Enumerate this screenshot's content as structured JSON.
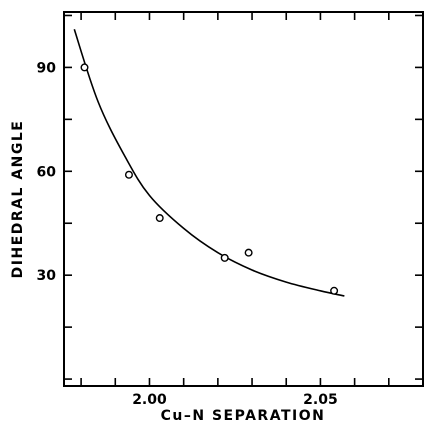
{
  "chart_data": {
    "type": "scatter",
    "title": "",
    "xlabel": "Cu–N  SEPARATION",
    "ylabel": "DIHEDRAL ANGLE",
    "xlim": [
      1.975,
      2.08
    ],
    "ylim": [
      -2,
      106
    ],
    "x_ticks": [
      1.98,
      1.99,
      2.0,
      2.01,
      2.02,
      2.03,
      2.04,
      2.05,
      2.06,
      2.07
    ],
    "x_tick_labels": [
      {
        "value": 2.0,
        "label": "2.00"
      },
      {
        "value": 2.05,
        "label": "2.05"
      }
    ],
    "y_ticks": [
      0,
      15,
      30,
      45,
      60,
      75,
      90,
      105
    ],
    "y_tick_labels": [
      {
        "value": 30,
        "label": "30"
      },
      {
        "value": 60,
        "label": "60"
      },
      {
        "value": 90,
        "label": "90"
      }
    ],
    "points": [
      {
        "x": 1.981,
        "y": 90
      },
      {
        "x": 1.994,
        "y": 59
      },
      {
        "x": 2.003,
        "y": 46.5
      },
      {
        "x": 2.022,
        "y": 35
      },
      {
        "x": 2.029,
        "y": 36.5
      },
      {
        "x": 2.054,
        "y": 25.5
      }
    ],
    "fit_curve": [
      {
        "x": 1.978,
        "y": 101
      },
      {
        "x": 1.985,
        "y": 80
      },
      {
        "x": 1.993,
        "y": 64
      },
      {
        "x": 2.0,
        "y": 53
      },
      {
        "x": 2.01,
        "y": 43.5
      },
      {
        "x": 2.02,
        "y": 36.5
      },
      {
        "x": 2.03,
        "y": 31.5
      },
      {
        "x": 2.04,
        "y": 28
      },
      {
        "x": 2.05,
        "y": 25.5
      },
      {
        "x": 2.057,
        "y": 24
      }
    ],
    "grid": false,
    "legend": "none"
  }
}
